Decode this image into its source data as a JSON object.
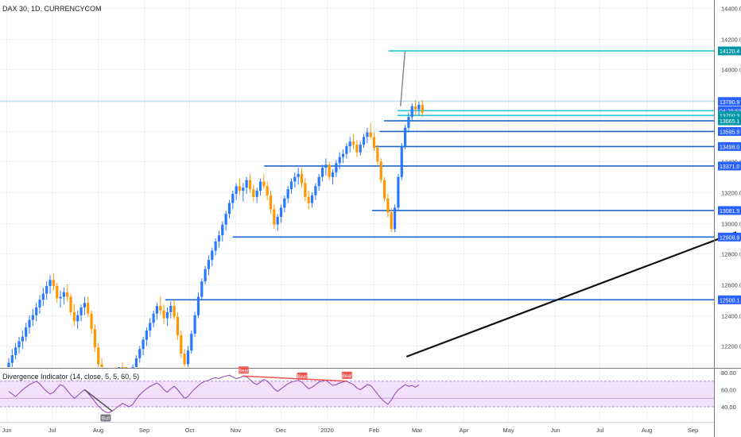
{
  "header": {
    "symbol_title": "DAX 30, 1D, CURRENCYCOM"
  },
  "indicator": {
    "title": "Divergence Indicator (14, close, 5, 5, 60, 5)",
    "signals": [
      "Bull",
      "Bear",
      "Bear",
      "Bear"
    ],
    "axis_ticks": [
      "80.00",
      "60.00",
      "40.00"
    ]
  },
  "colors": {
    "bull": "#2979ff",
    "bear": "#ff9800",
    "level_line": "#1e66d0",
    "cyan_line": "#26c6da",
    "rsi_line": "#8e44ad",
    "rsi_band": "#f3e0fb",
    "bull_tag": "#787b86",
    "bear_tag": "#ef5350",
    "price_tag": "#2962ff"
  },
  "chart_data": [
    {
      "type": "candlestick",
      "title": "DAX 30, 1D, CURRENCYCOM",
      "y_ticks": [
        "14400.0",
        "14200.0",
        "14000.0",
        "13800.0",
        "13600.0",
        "13400.0",
        "13200.0",
        "13000.0",
        "12800.0",
        "12600.0",
        "12400.0",
        "12200.0"
      ],
      "y_tick_values": [
        14400,
        14200,
        14000,
        13800,
        13600,
        13400,
        13200,
        13000,
        12800,
        12600,
        12400,
        12200
      ],
      "x_ticks": [
        "Jun",
        "Jul",
        "Aug",
        "Sep",
        "Oct",
        "Nov",
        "Dec",
        "2020",
        "Feb",
        "Mar",
        "Apr",
        "May",
        "Jun",
        "Jul",
        "Aug",
        "Sep"
      ],
      "ylim": [
        12130,
        14420
      ],
      "price_labels": [
        {
          "text": "14120.4",
          "value": 14120.4,
          "style": "cyan"
        },
        {
          "text": "13790.9",
          "value": 13790.9,
          "style": "blue"
        },
        {
          "text": "04:29:59",
          "value": 13731,
          "style": "blue"
        },
        {
          "text": "13700.3",
          "value": 13700.3,
          "style": "cyan"
        },
        {
          "text": "13665.1",
          "value": 13665.1,
          "style": "cyan"
        },
        {
          "text": "13595.9",
          "value": 13595.9,
          "style": "blue"
        },
        {
          "text": "13498.0",
          "value": 13498.0,
          "style": "blue"
        },
        {
          "text": "13371.0",
          "value": 13371.0,
          "style": "blue"
        },
        {
          "text": "13081.5",
          "value": 13081.5,
          "style": "blue"
        },
        {
          "text": "12908.9",
          "value": 12908.9,
          "style": "blue"
        },
        {
          "text": "12500.1",
          "value": 12500.1,
          "style": "blue"
        }
      ],
      "horizontal_levels": [
        {
          "value": 14120.4,
          "from": "2020-02-11",
          "color": "cyan"
        },
        {
          "value": 13790.9,
          "from": "2019-05-25",
          "color": "cyan-thin"
        },
        {
          "value": 13731,
          "from": "2020-02-17",
          "color": "cyan"
        },
        {
          "value": 13700.3,
          "from": "2020-02-17",
          "color": "cyan"
        },
        {
          "value": 13665.1,
          "from": "2020-02-08",
          "color": "blue"
        },
        {
          "value": 13595.9,
          "from": "2020-02-05",
          "color": "blue"
        },
        {
          "value": 13498.0,
          "from": "2020-02-01",
          "color": "blue"
        },
        {
          "value": 13371.0,
          "from": "2019-11-20",
          "color": "blue"
        },
        {
          "value": 13081.5,
          "from": "2020-01-31",
          "color": "blue"
        },
        {
          "value": 12908.9,
          "from": "2019-10-30",
          "color": "blue"
        },
        {
          "value": 12500.1,
          "from": "2019-09-15",
          "color": "blue"
        }
      ],
      "trendlines": [
        {
          "from": [
            "2020-02-19",
            13760
          ],
          "to": [
            "2020-02-22",
            14120
          ],
          "color": "gray"
        },
        {
          "from": [
            "2020-02-23",
            12130
          ],
          "to": [
            "2020-09-30",
            12940
          ],
          "color": "black"
        }
      ],
      "candles_ohlc": [
        [
          12040,
          12120,
          12000,
          12090
        ],
        [
          12090,
          12180,
          12060,
          12140
        ],
        [
          12140,
          12220,
          12110,
          12190
        ],
        [
          12190,
          12260,
          12150,
          12230
        ],
        [
          12230,
          12300,
          12180,
          12260
        ],
        [
          12260,
          12350,
          12230,
          12320
        ],
        [
          12320,
          12400,
          12280,
          12370
        ],
        [
          12370,
          12440,
          12330,
          12400
        ],
        [
          12400,
          12480,
          12360,
          12450
        ],
        [
          12450,
          12530,
          12410,
          12500
        ],
        [
          12500,
          12580,
          12460,
          12540
        ],
        [
          12540,
          12620,
          12500,
          12590
        ],
        [
          12590,
          12660,
          12540,
          12630
        ],
        [
          12630,
          12670,
          12560,
          12590
        ],
        [
          12590,
          12610,
          12480,
          12510
        ],
        [
          12510,
          12560,
          12450,
          12520
        ],
        [
          12520,
          12580,
          12470,
          12550
        ],
        [
          12550,
          12600,
          12490,
          12520
        ],
        [
          12520,
          12540,
          12400,
          12420
        ],
        [
          12420,
          12470,
          12330,
          12360
        ],
        [
          12360,
          12430,
          12310,
          12400
        ],
        [
          12400,
          12470,
          12360,
          12450
        ],
        [
          12450,
          12520,
          12400,
          12480
        ],
        [
          12480,
          12520,
          12390,
          12410
        ],
        [
          12410,
          12430,
          12280,
          12310
        ],
        [
          12310,
          12340,
          12160,
          12190
        ],
        [
          12190,
          12220,
          12050,
          12080
        ],
        [
          12080,
          12120,
          11980,
          12010
        ],
        [
          12010,
          12050,
          11920,
          11950
        ],
        [
          11950,
          12000,
          11880,
          11930
        ],
        [
          11930,
          11990,
          11870,
          11960
        ],
        [
          11960,
          12020,
          11910,
          11990
        ],
        [
          11990,
          12060,
          11950,
          12030
        ],
        [
          12030,
          12090,
          11980,
          12010
        ],
        [
          12010,
          12060,
          11940,
          11970
        ],
        [
          11970,
          12020,
          11910,
          11990
        ],
        [
          11990,
          12080,
          11960,
          12060
        ],
        [
          12060,
          12140,
          12030,
          12120
        ],
        [
          12120,
          12200,
          12090,
          12180
        ],
        [
          12180,
          12260,
          12140,
          12240
        ],
        [
          12240,
          12320,
          12200,
          12300
        ],
        [
          12300,
          12380,
          12260,
          12350
        ],
        [
          12350,
          12430,
          12320,
          12410
        ],
        [
          12410,
          12480,
          12370,
          12460
        ],
        [
          12460,
          12520,
          12400,
          12430
        ],
        [
          12430,
          12470,
          12340,
          12380
        ],
        [
          12380,
          12450,
          12330,
          12420
        ],
        [
          12420,
          12490,
          12380,
          12460
        ],
        [
          12460,
          12500,
          12370,
          12390
        ],
        [
          12390,
          12420,
          12240,
          12270
        ],
        [
          12270,
          12300,
          12120,
          12150
        ],
        [
          12150,
          12180,
          12040,
          12080
        ],
        [
          12080,
          12200,
          12050,
          12170
        ],
        [
          12170,
          12300,
          12150,
          12280
        ],
        [
          12280,
          12420,
          12260,
          12400
        ],
        [
          12400,
          12550,
          12380,
          12520
        ],
        [
          12520,
          12640,
          12500,
          12620
        ],
        [
          12620,
          12720,
          12600,
          12700
        ],
        [
          12700,
          12790,
          12660,
          12760
        ],
        [
          12760,
          12840,
          12720,
          12820
        ],
        [
          12820,
          12900,
          12790,
          12880
        ],
        [
          12880,
          12950,
          12840,
          12920
        ],
        [
          12920,
          13010,
          12880,
          12990
        ],
        [
          12990,
          13080,
          12950,
          13060
        ],
        [
          13060,
          13150,
          13030,
          13130
        ],
        [
          13130,
          13210,
          13090,
          13190
        ],
        [
          13190,
          13260,
          13150,
          13240
        ],
        [
          13240,
          13290,
          13180,
          13210
        ],
        [
          13210,
          13260,
          13140,
          13230
        ],
        [
          13230,
          13300,
          13190,
          13280
        ],
        [
          13280,
          13320,
          13200,
          13220
        ],
        [
          13220,
          13250,
          13140,
          13170
        ],
        [
          13170,
          13230,
          13130,
          13210
        ],
        [
          13210,
          13290,
          13180,
          13270
        ],
        [
          13270,
          13320,
          13220,
          13240
        ],
        [
          13240,
          13270,
          13150,
          13180
        ],
        [
          13180,
          13210,
          13060,
          13090
        ],
        [
          13090,
          13120,
          12960,
          12990
        ],
        [
          12990,
          13060,
          12950,
          13040
        ],
        [
          13040,
          13120,
          13000,
          13100
        ],
        [
          13100,
          13180,
          13070,
          13160
        ],
        [
          13160,
          13240,
          13130,
          13220
        ],
        [
          13220,
          13290,
          13190,
          13270
        ],
        [
          13270,
          13330,
          13230,
          13300
        ],
        [
          13300,
          13360,
          13250,
          13320
        ],
        [
          13320,
          13360,
          13230,
          13260
        ],
        [
          13260,
          13290,
          13140,
          13170
        ],
        [
          13170,
          13210,
          13090,
          13130
        ],
        [
          13130,
          13200,
          13100,
          13180
        ],
        [
          13180,
          13260,
          13150,
          13240
        ],
        [
          13240,
          13320,
          13210,
          13300
        ],
        [
          13300,
          13380,
          13270,
          13360
        ],
        [
          13360,
          13420,
          13310,
          13380
        ],
        [
          13380,
          13400,
          13280,
          13300
        ],
        [
          13300,
          13350,
          13250,
          13330
        ],
        [
          13330,
          13410,
          13300,
          13390
        ],
        [
          13390,
          13460,
          13350,
          13430
        ],
        [
          13430,
          13480,
          13390,
          13450
        ],
        [
          13450,
          13520,
          13420,
          13500
        ],
        [
          13500,
          13560,
          13460,
          13530
        ],
        [
          13530,
          13580,
          13480,
          13510
        ],
        [
          13510,
          13540,
          13430,
          13460
        ],
        [
          13460,
          13530,
          13440,
          13510
        ],
        [
          13510,
          13580,
          13490,
          13560
        ],
        [
          13560,
          13620,
          13520,
          13590
        ],
        [
          13590,
          13650,
          13550,
          13560
        ],
        [
          13560,
          13590,
          13470,
          13490
        ],
        [
          13490,
          13510,
          13380,
          13400
        ],
        [
          13400,
          13420,
          13260,
          13280
        ],
        [
          13280,
          13300,
          13140,
          13160
        ],
        [
          13160,
          13190,
          13040,
          13070
        ],
        [
          13070,
          13100,
          12940,
          12960
        ],
        [
          12960,
          13120,
          12940,
          13100
        ],
        [
          13100,
          13320,
          13080,
          13300
        ],
        [
          13300,
          13520,
          13280,
          13500
        ],
        [
          13500,
          13640,
          13480,
          13620
        ],
        [
          13620,
          13720,
          13590,
          13690
        ],
        [
          13690,
          13780,
          13660,
          13760
        ],
        [
          13760,
          13800,
          13700,
          13740
        ],
        [
          13740,
          13790,
          13700,
          13770
        ],
        [
          13770,
          13800,
          13690,
          13720
        ]
      ]
    },
    {
      "type": "line",
      "title": "Divergence Indicator (14, close, 5, 5, 60, 5)",
      "ylim": [
        28,
        88
      ],
      "y_ticks": [
        "80.00",
        "60.00",
        "40.00"
      ],
      "y_tick_values": [
        80,
        60,
        40
      ],
      "band": [
        40,
        70
      ],
      "mid_line": 50,
      "values": [
        58,
        55,
        52,
        56,
        60,
        63,
        66,
        68,
        70,
        67,
        62,
        58,
        55,
        57,
        62,
        66,
        64,
        59,
        54,
        50,
        53,
        57,
        60,
        56,
        51,
        46,
        41,
        37,
        34,
        33,
        35,
        38,
        41,
        44,
        42,
        40,
        43,
        49,
        54,
        58,
        61,
        64,
        66,
        68,
        65,
        60,
        57,
        61,
        64,
        60,
        55,
        50,
        52,
        57,
        61,
        65,
        68,
        70,
        71,
        73,
        74,
        73,
        75,
        76,
        77,
        75,
        73,
        74,
        76,
        75,
        72,
        68,
        66,
        69,
        72,
        70,
        66,
        61,
        58,
        61,
        64,
        67,
        69,
        70,
        71,
        69,
        65,
        61,
        63,
        66,
        69,
        70,
        71,
        68,
        65,
        66,
        68,
        69,
        70,
        68,
        66,
        62,
        60,
        63,
        66,
        65,
        60,
        55,
        50,
        46,
        43,
        48,
        55,
        60,
        63,
        66,
        64,
        65,
        63,
        66
      ],
      "signals": [
        {
          "label": "Bull",
          "index": 28,
          "type": "bull"
        },
        {
          "label": "Bear",
          "index": 68,
          "type": "bear"
        },
        {
          "label": "Bear",
          "index": 85,
          "type": "bear"
        },
        {
          "label": "Bear",
          "index": 98,
          "type": "bear"
        }
      ],
      "divergence_lines": [
        {
          "from": 68,
          "to": 98,
          "type": "bear"
        },
        {
          "from": 22,
          "to": 30,
          "type": "bull"
        }
      ]
    }
  ]
}
